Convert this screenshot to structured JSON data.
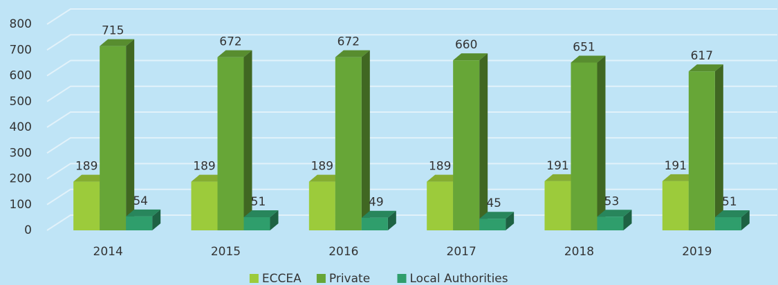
{
  "chart_data": {
    "type": "bar3d",
    "categories": [
      "2014",
      "2015",
      "2016",
      "2017",
      "2018",
      "2019"
    ],
    "series": [
      {
        "name": "ECCEA",
        "color": "#9ccb3b",
        "values": [
          189,
          189,
          189,
          189,
          191,
          191
        ]
      },
      {
        "name": "Private",
        "color": "#67a637",
        "values": [
          715,
          672,
          672,
          660,
          651,
          617
        ]
      },
      {
        "name": "Local Authorities",
        "color": "#2f9e6c",
        "values": [
          54,
          51,
          49,
          45,
          53,
          51
        ]
      }
    ],
    "ylim": [
      0,
      800
    ],
    "yticks": [
      0,
      100,
      200,
      300,
      400,
      500,
      600,
      700,
      800
    ],
    "grid": true,
    "legend": "bottom"
  }
}
